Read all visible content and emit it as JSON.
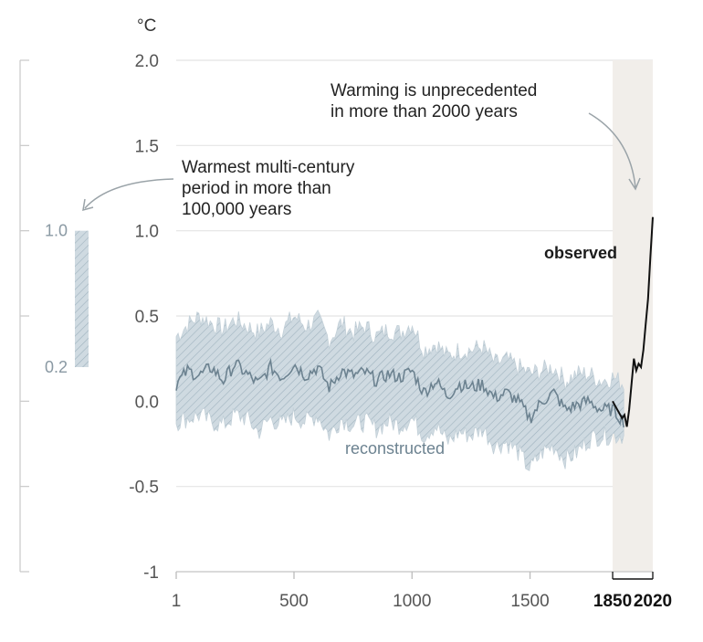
{
  "chart_data": [
    {
      "type": "line",
      "unit_label": "°C",
      "y_ticks": [
        "2.0",
        "1.5",
        "1.0",
        "0.5",
        "0.0",
        "-0.5",
        "-1"
      ],
      "y_values": [
        2.0,
        1.5,
        1.0,
        0.5,
        0.0,
        -0.5,
        -1.0
      ],
      "ylim": [
        -1,
        2
      ],
      "x_ticks": [
        "1",
        "500",
        "1000",
        "1500",
        "1850",
        "2020"
      ],
      "x_tick_values": [
        1,
        500,
        1000,
        1500,
        1850,
        2020
      ],
      "xlim": [
        1,
        2020
      ],
      "grid": true,
      "shaded_period": [
        1850,
        2020
      ],
      "annotations": {
        "unprecedented": "Warming is unprecedented\nin more than 2000 years",
        "warmest": "Warmest multi-century\nperiod in more than\n100,000 years"
      },
      "series": [
        {
          "name": "reconstructed",
          "color": "#6c8290",
          "band_color": "#c3d0d8",
          "x": [
            1,
            50,
            100,
            150,
            200,
            250,
            300,
            350,
            400,
            450,
            500,
            550,
            600,
            650,
            700,
            750,
            800,
            850,
            900,
            950,
            1000,
            1050,
            1100,
            1150,
            1200,
            1250,
            1300,
            1350,
            1400,
            1450,
            1500,
            1550,
            1600,
            1650,
            1700,
            1750,
            1800,
            1850,
            1900
          ],
          "values": [
            0.1,
            0.18,
            0.15,
            0.2,
            0.12,
            0.22,
            0.16,
            0.1,
            0.2,
            0.14,
            0.22,
            0.15,
            0.2,
            0.08,
            0.18,
            0.15,
            0.17,
            0.12,
            0.16,
            0.14,
            0.18,
            0.05,
            0.12,
            0.03,
            0.1,
            0.08,
            0.1,
            0.02,
            0.05,
            0.0,
            -0.1,
            0.0,
            0.05,
            -0.05,
            -0.02,
            0.0,
            -0.05,
            -0.05,
            -0.12
          ],
          "upper": [
            0.38,
            0.45,
            0.5,
            0.46,
            0.42,
            0.48,
            0.44,
            0.4,
            0.46,
            0.42,
            0.5,
            0.44,
            0.48,
            0.36,
            0.46,
            0.4,
            0.44,
            0.38,
            0.42,
            0.4,
            0.46,
            0.3,
            0.34,
            0.26,
            0.3,
            0.3,
            0.32,
            0.22,
            0.24,
            0.2,
            0.16,
            0.18,
            0.2,
            0.12,
            0.16,
            0.16,
            0.12,
            0.14,
            0.1
          ],
          "lower": [
            -0.12,
            -0.1,
            -0.08,
            -0.12,
            -0.14,
            -0.08,
            -0.1,
            -0.18,
            -0.1,
            -0.14,
            -0.08,
            -0.12,
            -0.08,
            -0.2,
            -0.1,
            -0.14,
            -0.12,
            -0.16,
            -0.12,
            -0.14,
            -0.1,
            -0.2,
            -0.14,
            -0.24,
            -0.18,
            -0.2,
            -0.16,
            -0.26,
            -0.24,
            -0.3,
            -0.4,
            -0.3,
            -0.26,
            -0.34,
            -0.3,
            -0.22,
            -0.2,
            -0.2,
            -0.2
          ]
        },
        {
          "name": "observed",
          "color": "#111111",
          "x": [
            1850,
            1870,
            1890,
            1900,
            1910,
            1920,
            1930,
            1940,
            1950,
            1960,
            1970,
            1980,
            1990,
            2000,
            2010,
            2020
          ],
          "values": [
            0.0,
            -0.05,
            -0.1,
            -0.08,
            -0.15,
            -0.05,
            0.1,
            0.25,
            0.18,
            0.22,
            0.2,
            0.3,
            0.45,
            0.6,
            0.85,
            1.08
          ]
        }
      ]
    },
    {
      "type": "bar",
      "y_ticks": [
        "1.0",
        "0.2"
      ],
      "range_bar": [
        0.2,
        1.0
      ],
      "band_color": "#c3d0d8"
    }
  ]
}
